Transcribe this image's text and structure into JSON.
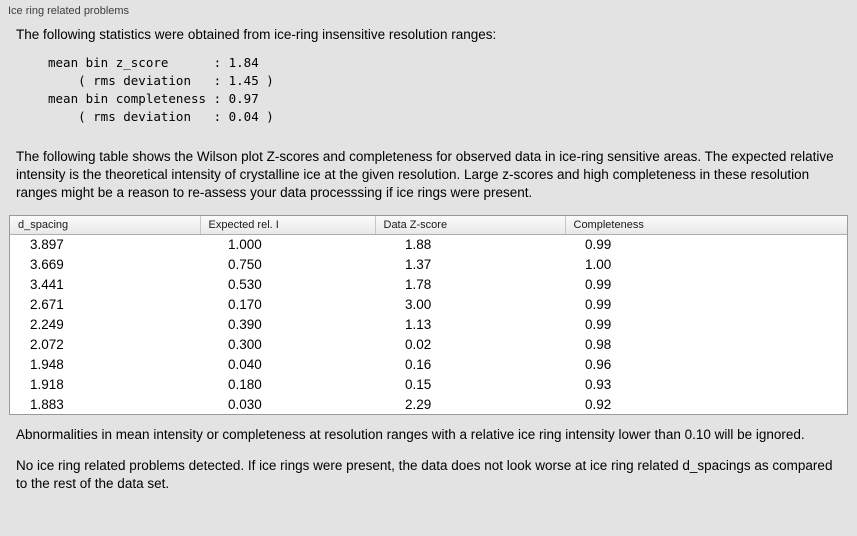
{
  "title": "Ice ring related problems",
  "intro": "The following statistics were obtained from ice-ring insensitive resolution ranges:",
  "stats": "mean bin z_score      : 1.84\n    ( rms deviation   : 1.45 )\nmean bin completeness : 0.97\n    ( rms deviation   : 0.04 )",
  "table_description": "The following table shows the Wilson plot Z-scores and completeness for observed data in ice-ring sensitive areas. The expected relative intensity is the theoretical intensity of crystalline ice at the given resolution. Large z-scores and high completeness in these resolution ranges might be a reason to re-assess your data processsing if ice rings were present.",
  "table": {
    "headers": [
      "d_spacing",
      "Expected rel. I",
      "Data Z-score",
      "Completeness"
    ],
    "rows": [
      [
        "3.897",
        "1.000",
        "1.88",
        "0.99"
      ],
      [
        "3.669",
        "0.750",
        "1.37",
        "1.00"
      ],
      [
        "3.441",
        "0.530",
        "1.78",
        "0.99"
      ],
      [
        "2.671",
        "0.170",
        "3.00",
        "0.99"
      ],
      [
        "2.249",
        "0.390",
        "1.13",
        "0.99"
      ],
      [
        "2.072",
        "0.300",
        "0.02",
        "0.98"
      ],
      [
        "1.948",
        "0.040",
        "0.16",
        "0.96"
      ],
      [
        "1.918",
        "0.180",
        "0.15",
        "0.93"
      ],
      [
        "1.883",
        "0.030",
        "2.29",
        "0.92"
      ]
    ]
  },
  "ignore_note": "Abnormalities in mean intensity or completeness at resolution ranges with a relative ice ring intensity lower than 0.10 will be ignored.",
  "conclusion": "No ice ring related problems detected. If ice rings were present, the data does not look worse at ice ring related d_spacings as compared to the rest of the data set.",
  "colors": {
    "background": "#e3e3e3",
    "table_background": "#ffffff",
    "table_border": "#9a9a9a",
    "text": "#000000"
  }
}
